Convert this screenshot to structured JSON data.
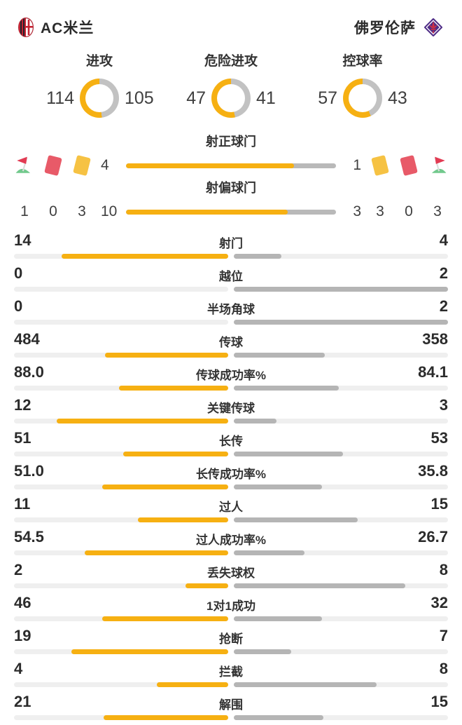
{
  "teams": {
    "home": "AC米兰",
    "away": "佛罗伦萨"
  },
  "colors": {
    "accent_yellow": "#F6B012",
    "donut_gray": "#C2C2C2",
    "away_fill_gray": "#B5B5B5",
    "track_gray": "#EFEFEF",
    "red_card": "#E85A68",
    "yellow_card": "#F6C243",
    "flag_red": "#E23B53",
    "flag_green": "#71C98C",
    "milan_red": "#C62232",
    "fiorentina_purple": "#4F2D87",
    "fleur_red": "#D12E43"
  },
  "donuts": [
    {
      "label": "进攻",
      "home": 114,
      "away": 105
    },
    {
      "label": "危险进攻",
      "home": 47,
      "away": 41
    },
    {
      "label": "控球率",
      "home": 57,
      "away": 43
    }
  ],
  "events": {
    "left": {
      "icons": [
        "corner-flag",
        "red-card",
        "yellow-card"
      ],
      "values": [
        "1",
        "0",
        "3"
      ]
    },
    "right": {
      "icons": [
        "yellow-card",
        "red-card",
        "corner-flag"
      ],
      "values": [
        "3",
        "0",
        "3"
      ]
    }
  },
  "shot_bars": [
    {
      "label": "射正球门",
      "home": "4",
      "away": "1"
    },
    {
      "label": "射偏球门",
      "home": "10",
      "away": "3"
    }
  ],
  "stats": [
    {
      "label": "射门",
      "home": "14",
      "away": "4"
    },
    {
      "label": "越位",
      "home": "0",
      "away": "2"
    },
    {
      "label": "半场角球",
      "home": "0",
      "away": "2"
    },
    {
      "label": "传球",
      "home": "484",
      "away": "358"
    },
    {
      "label": "传球成功率%",
      "home": "88.0",
      "away": "84.1"
    },
    {
      "label": "关键传球",
      "home": "12",
      "away": "3"
    },
    {
      "label": "长传",
      "home": "51",
      "away": "53"
    },
    {
      "label": "长传成功率%",
      "home": "51.0",
      "away": "35.8"
    },
    {
      "label": "过人",
      "home": "11",
      "away": "15"
    },
    {
      "label": "过人成功率%",
      "home": "54.5",
      "away": "26.7"
    },
    {
      "label": "丢失球权",
      "home": "2",
      "away": "8"
    },
    {
      "label": "1对1成功",
      "home": "46",
      "away": "32"
    },
    {
      "label": "抢断",
      "home": "19",
      "away": "7"
    },
    {
      "label": "拦截",
      "home": "4",
      "away": "8"
    },
    {
      "label": "解围",
      "home": "21",
      "away": "15"
    }
  ],
  "chart_data": [
    {
      "type": "pie",
      "title": "进攻",
      "legend": [
        "AC米兰",
        "佛罗伦萨"
      ],
      "values": [
        114,
        105
      ],
      "colors": [
        "#F6B012",
        "#C2C2C2"
      ]
    },
    {
      "type": "pie",
      "title": "危险进攻",
      "legend": [
        "AC米兰",
        "佛罗伦萨"
      ],
      "values": [
        47,
        41
      ],
      "colors": [
        "#F6B012",
        "#C2C2C2"
      ]
    },
    {
      "type": "pie",
      "title": "控球率",
      "legend": [
        "AC米兰",
        "佛罗伦萨"
      ],
      "values": [
        57,
        43
      ],
      "colors": [
        "#F6B012",
        "#C2C2C2"
      ]
    },
    {
      "type": "bar",
      "title": "AC米兰 vs 佛罗伦萨 技术统计",
      "categories": [
        "射正球门",
        "射偏球门",
        "射门",
        "越位",
        "半场角球",
        "传球",
        "传球成功率%",
        "关键传球",
        "长传",
        "长传成功率%",
        "过人",
        "过人成功率%",
        "丢失球权",
        "1对1成功",
        "抢断",
        "拦截",
        "解围"
      ],
      "series": [
        {
          "name": "AC米兰",
          "values": [
            4,
            10,
            14,
            0,
            0,
            484,
            88.0,
            12,
            51,
            51.0,
            11,
            54.5,
            2,
            46,
            19,
            4,
            21
          ]
        },
        {
          "name": "佛罗伦萨",
          "values": [
            1,
            3,
            4,
            2,
            2,
            358,
            84.1,
            3,
            53,
            35.8,
            15,
            26.7,
            8,
            32,
            7,
            8,
            15
          ]
        }
      ],
      "legend_position": "sides",
      "grid": false
    },
    {
      "type": "table",
      "title": "比赛事件",
      "categories": [
        "角球",
        "红牌",
        "黄牌"
      ],
      "series": [
        {
          "name": "AC米兰",
          "values": [
            1,
            0,
            3
          ]
        },
        {
          "name": "佛罗伦萨",
          "values": [
            3,
            0,
            3
          ]
        }
      ]
    }
  ]
}
